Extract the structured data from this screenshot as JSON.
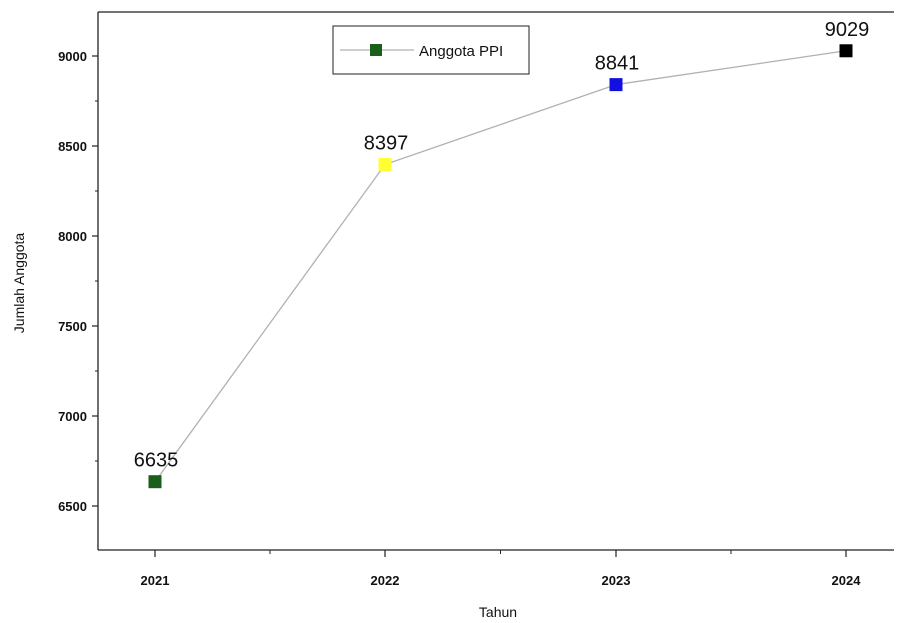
{
  "chart_data": {
    "type": "line",
    "title": "",
    "xlabel": "Tahun",
    "ylabel": "Jumlah Anggota",
    "categories": [
      "2021",
      "2022",
      "2023",
      "2024"
    ],
    "series": [
      {
        "name": "Anggota PPI",
        "values": [
          6635,
          8397,
          8841,
          9029
        ],
        "line_color": "#b0b0b0",
        "marker_colors": [
          "#1a5e1a",
          "#ffff33",
          "#1010e0",
          "#000000"
        ],
        "legend_marker_color": "#1a5e1a"
      }
    ],
    "data_labels": [
      "6635",
      "8397",
      "8841",
      "9029"
    ],
    "yticks": [
      6500,
      7000,
      7500,
      8000,
      8500,
      9000
    ],
    "ytick_labels": [
      "6500",
      "7000",
      "7500",
      "8000",
      "8500",
      "9000"
    ],
    "ylim": [
      6200,
      9250
    ],
    "grid": false,
    "legend_position": "top-center"
  }
}
